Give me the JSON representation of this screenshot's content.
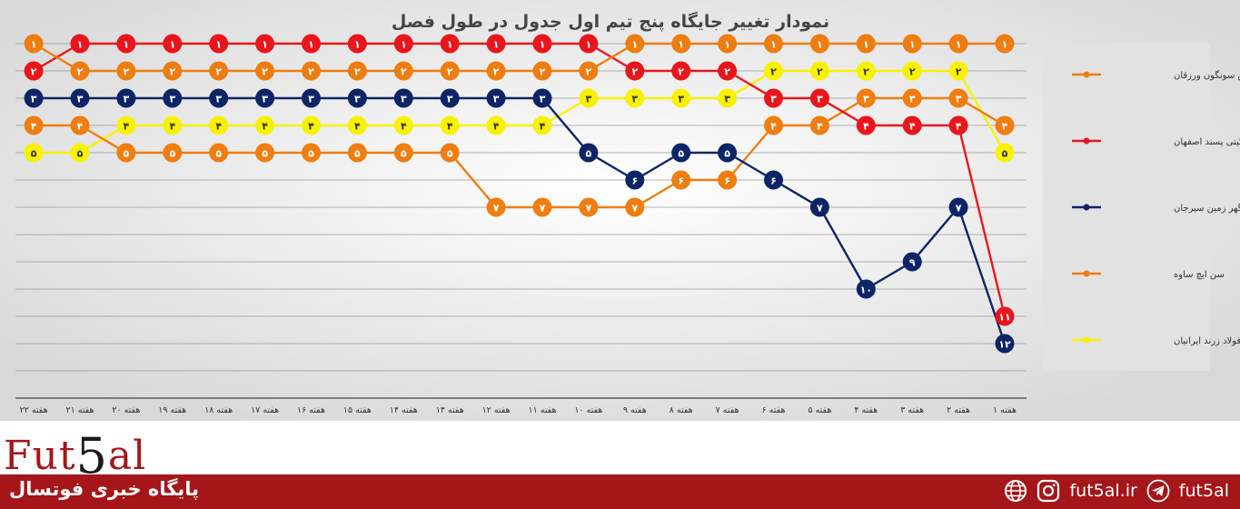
{
  "chart_data": {
    "type": "line",
    "title": "نمودار تغییر جایگاه پنج تیم اول جدول در طول فصل",
    "categories": [
      "هفته ۱",
      "هفته ۲",
      "هفته ۳",
      "هفته ۴",
      "هفته ۵",
      "هفته ۶",
      "هفته ۷",
      "هفته ۸",
      "هفته ۹",
      "هفته ۱۰",
      "هفته ۱۱",
      "هفته ۱۲",
      "هفته ۱۳",
      "هفته ۱۴",
      "هفته ۱۵",
      "هفته ۱۶",
      "هفته ۱۷",
      "هفته ۱۸",
      "هفته ۱۹",
      "هفته ۲۰",
      "هفته ۲۱",
      "هفته ۲۲"
    ],
    "x_direction": "right-to-left",
    "ylim": [
      1,
      13
    ],
    "y_inverted": true,
    "grid": true,
    "legend_position": "right",
    "series": [
      {
        "name": "مس سونگون ورزقان",
        "color": "#ed7d10",
        "values": [
          1,
          1,
          1,
          1,
          1,
          1,
          1,
          1,
          1,
          2,
          2,
          2,
          2,
          2,
          2,
          2,
          2,
          2,
          2,
          2,
          2,
          1
        ]
      },
      {
        "name": "صنایع گیتی پسند اصفهان",
        "color": "#e8161c",
        "values": [
          11,
          4,
          4,
          4,
          3,
          3,
          2,
          2,
          2,
          1,
          1,
          1,
          1,
          1,
          1,
          1,
          1,
          1,
          1,
          1,
          1,
          2
        ]
      },
      {
        "name": "گهر زمین سیرجان",
        "color": "#0d2466",
        "values": [
          12,
          7,
          9,
          10,
          7,
          6,
          5,
          5,
          6,
          5,
          3,
          3,
          3,
          3,
          3,
          3,
          3,
          3,
          3,
          3,
          3,
          3
        ]
      },
      {
        "name": "سن ایچ ساوه",
        "color": "#ef7d10",
        "values": [
          4,
          3,
          3,
          3,
          4,
          4,
          6,
          6,
          7,
          7,
          7,
          7,
          5,
          5,
          5,
          5,
          5,
          5,
          5,
          5,
          4,
          4
        ]
      },
      {
        "name": "فولاد زرند ایرانیان",
        "color": "#f8f200",
        "values": [
          5,
          2,
          2,
          2,
          2,
          2,
          3,
          3,
          3,
          3,
          4,
          4,
          4,
          4,
          4,
          4,
          4,
          4,
          4,
          4,
          5,
          5
        ]
      }
    ],
    "point_labels": {
      "digits": [
        "۰",
        "۱",
        "۲",
        "۳",
        "۴",
        "۵",
        "۶",
        "۷",
        "۸",
        "۹"
      ]
    }
  },
  "footer": {
    "logo_part1": "Fut",
    "logo_part2": "5",
    "logo_part3": "al",
    "site_title": "پایگاه خبری فوتسال",
    "website": "fut5al.ir",
    "handle": "fut5al"
  },
  "icons": {
    "web": "globe-icon",
    "instagram": "instagram-icon",
    "telegram": "telegram-icon"
  }
}
